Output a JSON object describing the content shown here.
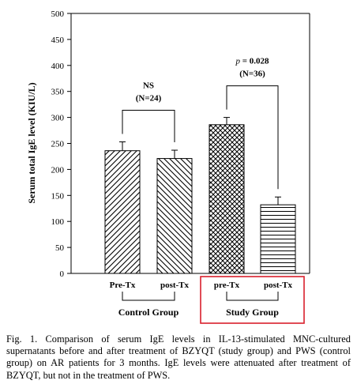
{
  "chart_data": {
    "type": "bar",
    "ylabel": "Serum total IgE level (KIU/L)",
    "ylim": [
      0,
      500
    ],
    "yticks": [
      0,
      50,
      100,
      150,
      200,
      250,
      300,
      350,
      400,
      450,
      500
    ],
    "categories": [
      "Pre-Tx",
      "post-Tx",
      "pre-Tx",
      "post-Tx"
    ],
    "values": [
      236,
      221,
      286,
      132
    ],
    "errors": [
      17,
      16,
      14,
      15
    ],
    "patterns": [
      "diag-up",
      "diag-down",
      "crosshatch",
      "horizontal"
    ],
    "groups": [
      {
        "name": "Control Group",
        "bars": [
          0,
          1
        ],
        "annotation_line1": "NS",
        "annotation_line2": "(N=24)",
        "highlighted": false
      },
      {
        "name": "Study Group",
        "bars": [
          2,
          3
        ],
        "annotation_line1": "p = 0.028",
        "annotation_line2": "(N=36)",
        "highlighted": true
      }
    ],
    "grid": false,
    "highlight_color": "#d9202c"
  },
  "caption": "Fig. 1. Comparison of serum IgE levels in IL-13-stimulated MNC-cultured supernatants before and after treatment of BZYQT (study group) and PWS (control group) on AR patients for 3 months. IgE levels were attenuated after treatment of BZYQT, but not in the treatment of PWS."
}
